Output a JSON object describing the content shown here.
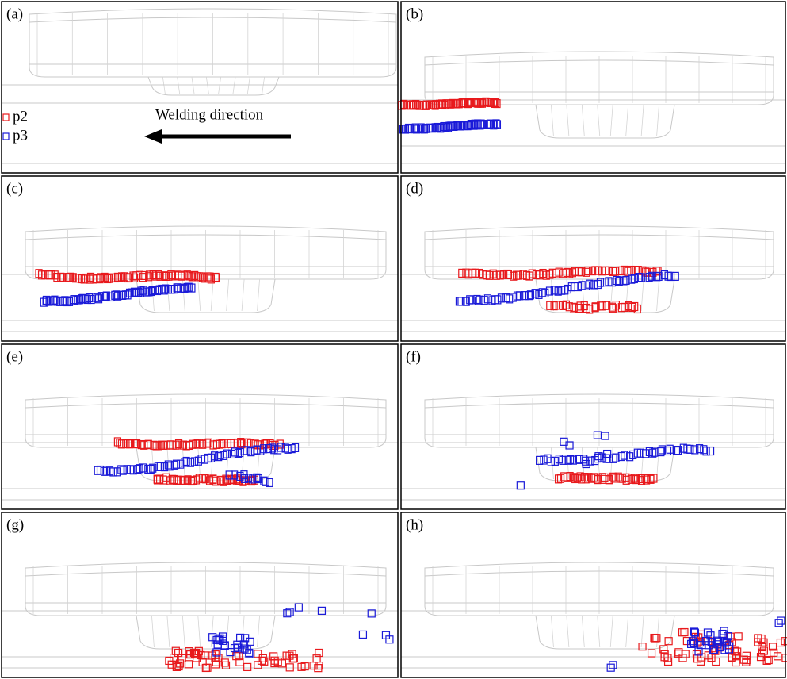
{
  "panels": [
    {
      "label": "(a)"
    },
    {
      "label": "(b)"
    },
    {
      "label": "(c)"
    },
    {
      "label": "(d)"
    },
    {
      "label": "(e)"
    },
    {
      "label": "(f)"
    },
    {
      "label": "(g)"
    },
    {
      "label": "(h)"
    }
  ],
  "legend": [
    {
      "label": "p2",
      "color": "#e8191c"
    },
    {
      "label": "p3",
      "color": "#1a1ad8"
    }
  ],
  "annotation": "Welding direction"
}
